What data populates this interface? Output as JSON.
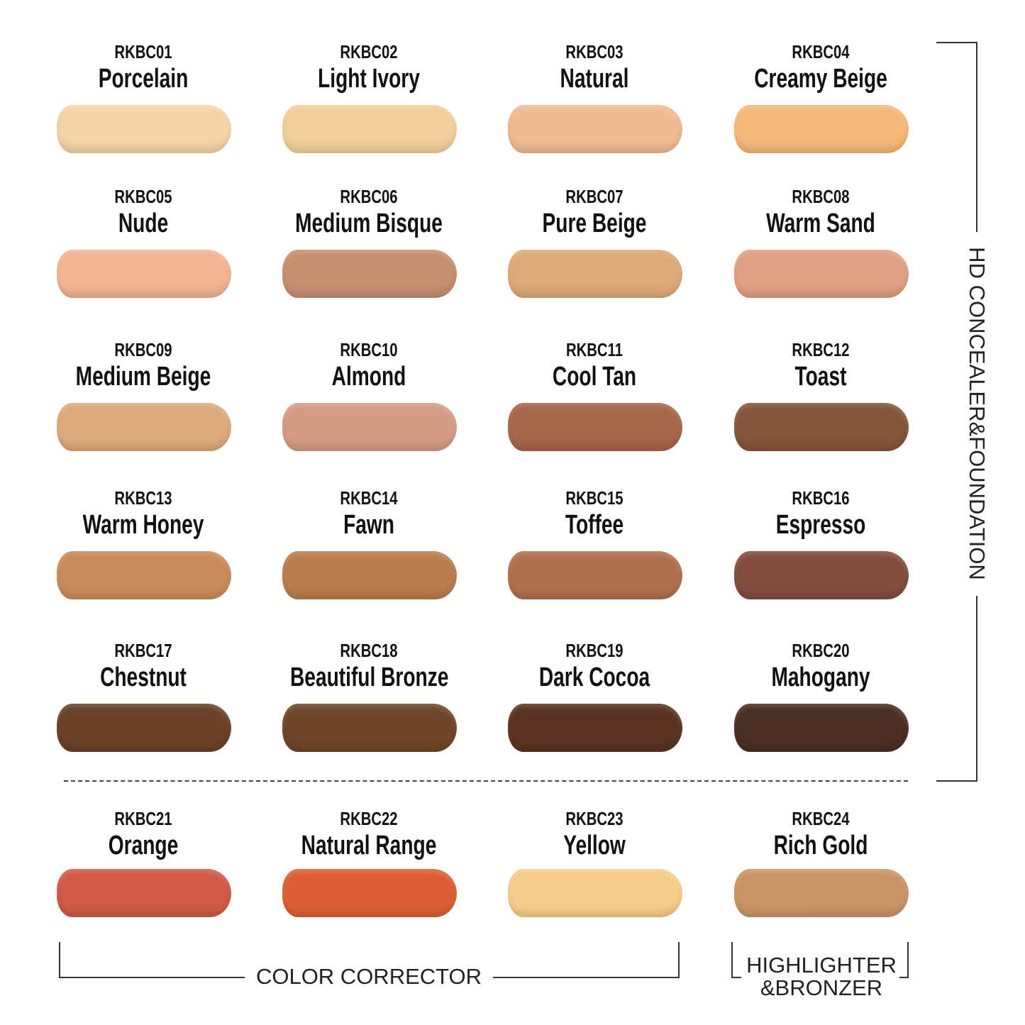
{
  "shades": [
    {
      "code": "RKBC01",
      "name": "Porcelain",
      "color": "#f3d4a8"
    },
    {
      "code": "RKBC02",
      "name": "Light Ivory",
      "color": "#f2cf9b"
    },
    {
      "code": "RKBC03",
      "name": "Natural",
      "color": "#efbb92"
    },
    {
      "code": "RKBC04",
      "name": "Creamy Beige",
      "color": "#f5b878"
    },
    {
      "code": "RKBC05",
      "name": "Nude",
      "color": "#f2b493"
    },
    {
      "code": "RKBC06",
      "name": "Medium Bisque",
      "color": "#c68f6e"
    },
    {
      "code": "RKBC07",
      "name": "Pure Beige",
      "color": "#dcaa78"
    },
    {
      "code": "RKBC08",
      "name": "Warm Sand",
      "color": "#e0a084"
    },
    {
      "code": "RKBC09",
      "name": "Medium Beige",
      "color": "#dcaa7c"
    },
    {
      "code": "RKBC10",
      "name": "Almond",
      "color": "#d49c85"
    },
    {
      "code": "RKBC11",
      "name": "Cool Tan",
      "color": "#a8664a"
    },
    {
      "code": "RKBC12",
      "name": "Toast",
      "color": "#84553a"
    },
    {
      "code": "RKBC13",
      "name": "Warm Honey",
      "color": "#c98b5a"
    },
    {
      "code": "RKBC14",
      "name": "Fawn",
      "color": "#b97e4c"
    },
    {
      "code": "RKBC15",
      "name": "Toffee",
      "color": "#b0704f"
    },
    {
      "code": "RKBC16",
      "name": "Espresso",
      "color": "#824d3f"
    },
    {
      "code": "RKBC17",
      "name": "Chestnut",
      "color": "#6b4128"
    },
    {
      "code": "RKBC18",
      "name": "Beautiful Bronze",
      "color": "#704528"
    },
    {
      "code": "RKBC19",
      "name": "Dark Cocoa",
      "color": "#5a3322"
    },
    {
      "code": "RKBC20",
      "name": "Mahogany",
      "color": "#4a2f22"
    },
    {
      "code": "RKBC21",
      "name": "Orange",
      "color": "#d15a48"
    },
    {
      "code": "RKBC22",
      "name": "Natural Range",
      "color": "#dd5e33"
    },
    {
      "code": "RKBC23",
      "name": "Yellow",
      "color": "#f7cd8a"
    },
    {
      "code": "RKBC24",
      "name": "Rich Gold",
      "color": "#c99568"
    }
  ],
  "groups": {
    "foundation": "HD CONCEALER&FOUNDATION",
    "corrector": "COLOR CORRECTOR",
    "highlighter_line1": "HIGHLIGHTER",
    "highlighter_line2": "&BRONZER"
  }
}
